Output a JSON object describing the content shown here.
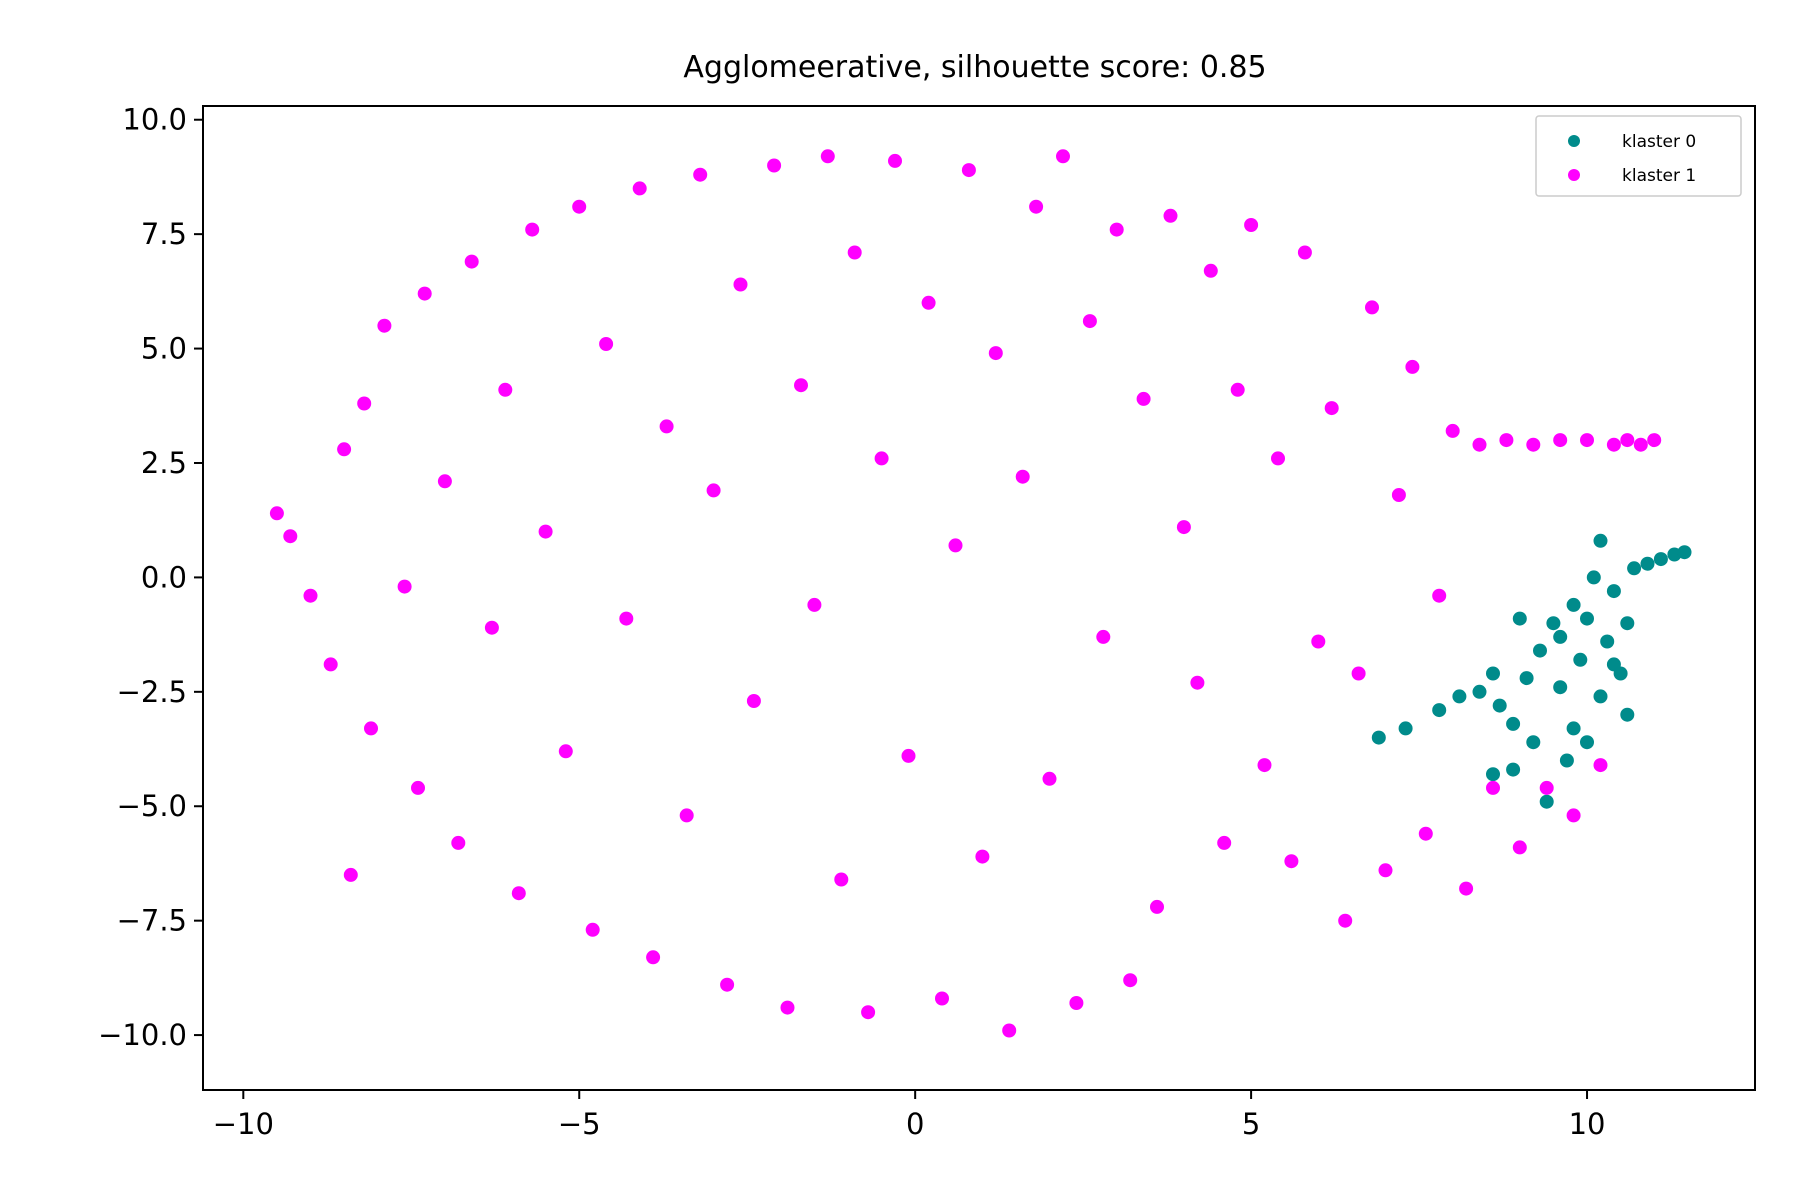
{
  "chart_data": {
    "type": "scatter",
    "title": "Agglomeerative, silhouette score: 0.85",
    "xlabel": "",
    "ylabel": "",
    "xlim": [
      -10.6,
      12.5
    ],
    "ylim": [
      -11.2,
      10.3
    ],
    "x_ticks": [
      -10,
      -5,
      0,
      5,
      10
    ],
    "y_ticks": [
      10.0,
      7.5,
      5.0,
      2.5,
      0.0,
      -2.5,
      -5.0,
      -7.5,
      -10.0
    ],
    "x_tick_labels": [
      "−10",
      "−5",
      "0",
      "5",
      "10"
    ],
    "y_tick_labels": [
      "10.0",
      "7.5",
      "5.0",
      "2.5",
      "0.0",
      "−2.5",
      "−5.0",
      "−7.5",
      "−10.0"
    ],
    "grid": false,
    "legend_position": "top-right",
    "series": [
      {
        "name": "klaster 0",
        "color": "#008b8b",
        "points": [
          [
            6.9,
            -3.5
          ],
          [
            7.3,
            -3.3
          ],
          [
            7.8,
            -2.9
          ],
          [
            8.1,
            -2.6
          ],
          [
            8.4,
            -2.5
          ],
          [
            8.7,
            -2.8
          ],
          [
            8.9,
            -3.2
          ],
          [
            9.1,
            -2.2
          ],
          [
            9.3,
            -1.6
          ],
          [
            9.5,
            -1.0
          ],
          [
            9.6,
            -2.4
          ],
          [
            9.8,
            -0.6
          ],
          [
            9.9,
            -1.8
          ],
          [
            10.0,
            -0.9
          ],
          [
            10.1,
            0.0
          ],
          [
            10.2,
            0.8
          ],
          [
            10.3,
            -1.4
          ],
          [
            10.4,
            -0.3
          ],
          [
            10.5,
            -2.1
          ],
          [
            10.6,
            -1.0
          ],
          [
            10.7,
            0.2
          ],
          [
            10.9,
            0.3
          ],
          [
            11.1,
            0.4
          ],
          [
            11.3,
            0.5
          ],
          [
            11.45,
            0.55
          ],
          [
            10.6,
            -3.0
          ],
          [
            9.7,
            -4.0
          ],
          [
            9.4,
            -4.9
          ],
          [
            9.8,
            -3.3
          ],
          [
            10.0,
            -3.6
          ],
          [
            9.2,
            -3.6
          ],
          [
            8.9,
            -4.2
          ],
          [
            8.6,
            -4.3
          ],
          [
            10.2,
            -2.6
          ],
          [
            10.4,
            -1.9
          ],
          [
            9.6,
            -1.3
          ],
          [
            9.0,
            -0.9
          ],
          [
            8.6,
            -2.1
          ]
        ]
      },
      {
        "name": "klaster 1",
        "color": "#ff00ff",
        "points": [
          [
            -9.5,
            1.4
          ],
          [
            -9.3,
            0.9
          ],
          [
            -9.0,
            -0.4
          ],
          [
            -8.5,
            2.8
          ],
          [
            -8.7,
            -1.9
          ],
          [
            -8.4,
            -6.5
          ],
          [
            -8.2,
            3.8
          ],
          [
            -8.1,
            -3.3
          ],
          [
            -7.9,
            5.5
          ],
          [
            -7.6,
            -0.2
          ],
          [
            -7.4,
            -4.6
          ],
          [
            -7.3,
            6.2
          ],
          [
            -7.0,
            2.1
          ],
          [
            -6.8,
            -5.8
          ],
          [
            -6.6,
            6.9
          ],
          [
            -6.3,
            -1.1
          ],
          [
            -6.1,
            4.1
          ],
          [
            -5.9,
            -6.9
          ],
          [
            -5.7,
            7.6
          ],
          [
            -5.5,
            1.0
          ],
          [
            -5.2,
            -3.8
          ],
          [
            -5.0,
            8.1
          ],
          [
            -4.8,
            -7.7
          ],
          [
            -4.6,
            5.1
          ],
          [
            -4.3,
            -0.9
          ],
          [
            -4.1,
            8.5
          ],
          [
            -3.9,
            -8.3
          ],
          [
            -3.7,
            3.3
          ],
          [
            -3.4,
            -5.2
          ],
          [
            -3.2,
            8.8
          ],
          [
            -3.0,
            1.9
          ],
          [
            -2.8,
            -8.9
          ],
          [
            -2.6,
            6.4
          ],
          [
            -2.4,
            -2.7
          ],
          [
            -2.1,
            9.0
          ],
          [
            -1.9,
            -9.4
          ],
          [
            -1.7,
            4.2
          ],
          [
            -1.5,
            -0.6
          ],
          [
            -1.3,
            9.2
          ],
          [
            -1.1,
            -6.6
          ],
          [
            -0.9,
            7.1
          ],
          [
            -0.7,
            -9.5
          ],
          [
            -0.5,
            2.6
          ],
          [
            -0.3,
            9.1
          ],
          [
            -0.1,
            -3.9
          ],
          [
            0.2,
            6.0
          ],
          [
            0.4,
            -9.2
          ],
          [
            0.6,
            0.7
          ],
          [
            0.8,
            8.9
          ],
          [
            1.0,
            -6.1
          ],
          [
            1.2,
            4.9
          ],
          [
            1.4,
            -9.9
          ],
          [
            1.6,
            2.2
          ],
          [
            1.8,
            8.1
          ],
          [
            2.0,
            -4.4
          ],
          [
            2.2,
            9.2
          ],
          [
            2.4,
            -9.3
          ],
          [
            2.6,
            5.6
          ],
          [
            2.8,
            -1.3
          ],
          [
            3.0,
            7.6
          ],
          [
            3.2,
            -8.8
          ],
          [
            3.4,
            3.9
          ],
          [
            3.6,
            -7.2
          ],
          [
            3.8,
            7.9
          ],
          [
            4.0,
            1.1
          ],
          [
            4.2,
            -2.3
          ],
          [
            4.4,
            6.7
          ],
          [
            4.6,
            -5.8
          ],
          [
            4.8,
            4.1
          ],
          [
            5.0,
            7.7
          ],
          [
            5.2,
            -4.1
          ],
          [
            5.4,
            2.6
          ],
          [
            5.6,
            -6.2
          ],
          [
            5.8,
            7.1
          ],
          [
            6.0,
            -1.4
          ],
          [
            6.2,
            3.7
          ],
          [
            6.4,
            -7.5
          ],
          [
            6.6,
            -2.1
          ],
          [
            6.8,
            5.9
          ],
          [
            7.0,
            -6.4
          ],
          [
            7.2,
            1.8
          ],
          [
            7.4,
            4.6
          ],
          [
            7.6,
            -5.6
          ],
          [
            7.8,
            -0.4
          ],
          [
            8.0,
            3.2
          ],
          [
            8.2,
            -6.8
          ],
          [
            8.4,
            2.9
          ],
          [
            8.6,
            -4.6
          ],
          [
            8.8,
            3.0
          ],
          [
            9.0,
            -5.9
          ],
          [
            9.2,
            2.9
          ],
          [
            9.4,
            -4.6
          ],
          [
            9.6,
            3.0
          ],
          [
            9.8,
            -5.2
          ],
          [
            10.0,
            3.0
          ],
          [
            10.2,
            -4.1
          ],
          [
            10.4,
            2.9
          ],
          [
            10.6,
            3.0
          ],
          [
            10.8,
            2.9
          ],
          [
            11.0,
            3.0
          ]
        ]
      }
    ]
  },
  "legend": {
    "items": [
      {
        "label": "klaster 0",
        "color": "#008b8b"
      },
      {
        "label": "klaster 1",
        "color": "#ff00ff"
      }
    ]
  }
}
